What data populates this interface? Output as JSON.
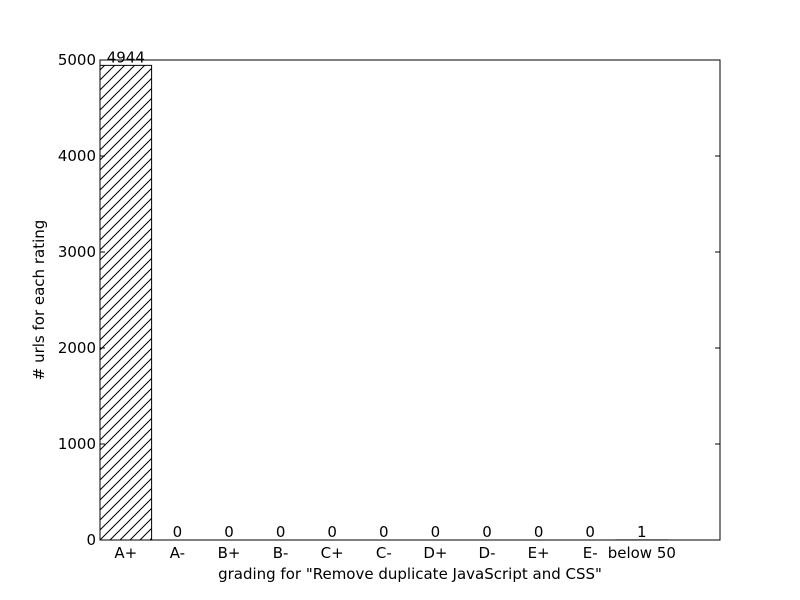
{
  "chart_data": {
    "type": "bar",
    "categories": [
      "A+",
      "A-",
      "B+",
      "B-",
      "C+",
      "C-",
      "D+",
      "D-",
      "E+",
      "E-",
      "below 50"
    ],
    "values": [
      4944,
      0,
      0,
      0,
      0,
      0,
      0,
      0,
      0,
      0,
      1
    ],
    "data_labels": [
      "4944",
      "0",
      "0",
      "0",
      "0",
      "0",
      "0",
      "0",
      "0",
      "0",
      "1"
    ],
    "title": "",
    "xlabel": "grading for \"Remove duplicate JavaScript and CSS\"",
    "ylabel": "# urls for each rating",
    "ylim": [
      0,
      5000
    ],
    "yticks": [
      0,
      1000,
      2000,
      3000,
      4000,
      5000
    ],
    "grid": false,
    "bar_color": "#ffffff",
    "bar_edge_color": "#000000",
    "bar_hatch": "diagonal"
  }
}
